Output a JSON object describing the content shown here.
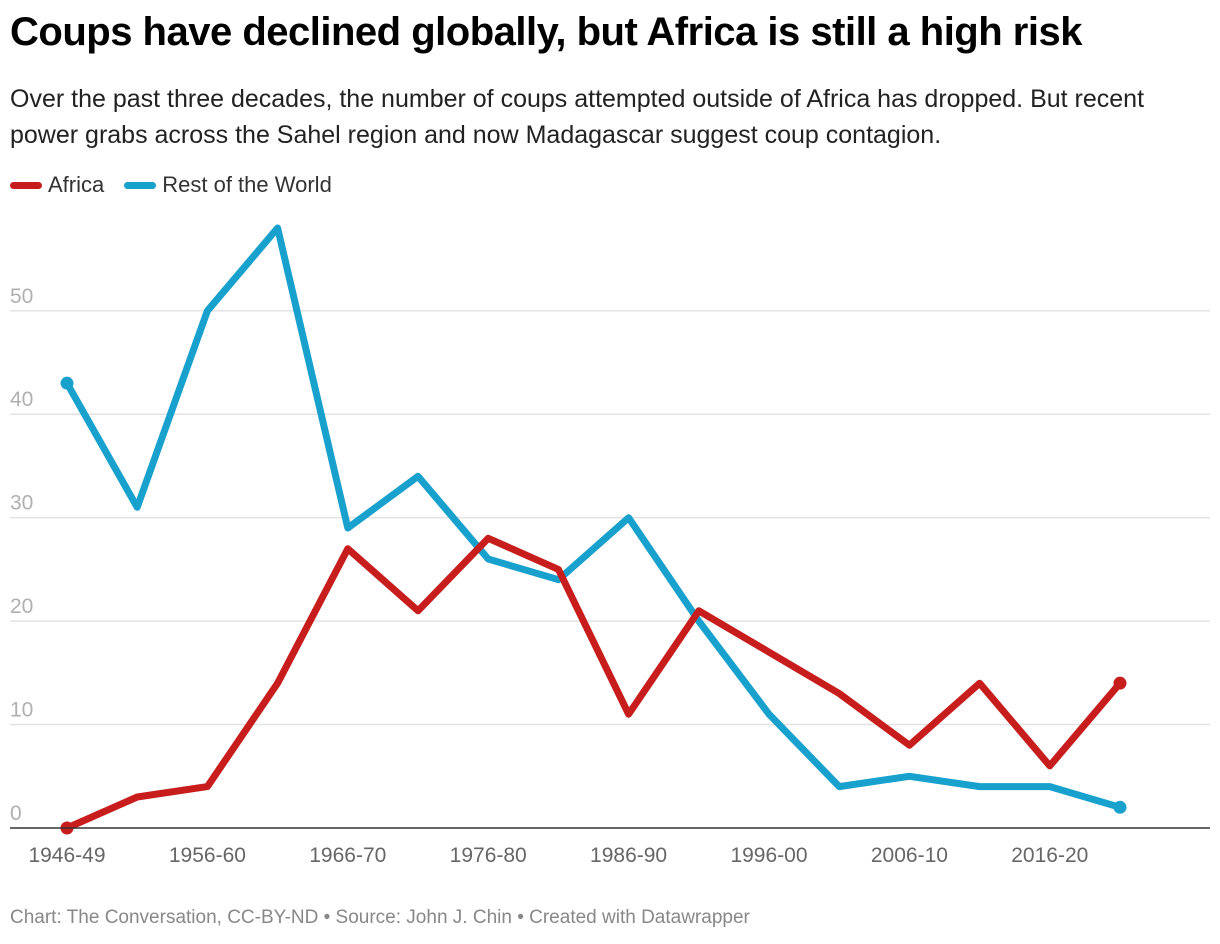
{
  "header": {
    "title": "Coups have declined globally, but Africa is still a high risk",
    "subtitle": "Over the past three decades, the number of coups attempted outside of Africa has dropped. But recent power grabs across the Sahel region and now Madagascar suggest coup contagion."
  },
  "footer": {
    "text": "Chart: The Conversation, CC-BY-ND • Source: John J. Chin • Created with Datawrapper"
  },
  "chart_data": {
    "type": "line",
    "title": "Coups have declined globally, but Africa is still a high risk",
    "xlabel": "",
    "ylabel": "",
    "ylim": [
      0,
      58
    ],
    "yticks": [
      0,
      10,
      20,
      30,
      40,
      50
    ],
    "grid": true,
    "legend_position": "top-left",
    "categories": [
      "1946-49",
      "1951-55",
      "1956-60",
      "1961-65",
      "1966-70",
      "1971-75",
      "1976-80",
      "1981-85",
      "1986-90",
      "1991-95",
      "1996-00",
      "2001-05",
      "2006-10",
      "2011-15",
      "2016-20",
      "2021-25"
    ],
    "x_tick_labels": [
      "1946-49",
      "1956-60",
      "1966-70",
      "1976-80",
      "1986-90",
      "1996-00",
      "2006-10",
      "2016-20"
    ],
    "series": [
      {
        "name": "Africa",
        "color": "#c71e1d",
        "values": [
          0,
          3,
          4,
          14,
          27,
          21,
          28,
          25,
          11,
          21,
          17,
          13,
          8,
          14,
          6,
          14
        ]
      },
      {
        "name": "Rest of the World",
        "color": "#18a1cd",
        "values": [
          43,
          31,
          50,
          58,
          29,
          34,
          26,
          24,
          30,
          20,
          11,
          4,
          5,
          4,
          4,
          2
        ]
      }
    ]
  }
}
